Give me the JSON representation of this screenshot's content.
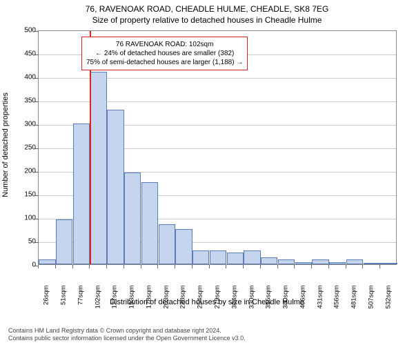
{
  "title1": "76, RAVENOAK ROAD, CHEADLE HULME, CHEADLE, SK8 7EG",
  "title2": "Size of property relative to detached houses in Cheadle Hulme",
  "ylabel": "Number of detached properties",
  "xlabel": "Distribution of detached houses by size in Cheadle Hulme",
  "footer1": "Contains HM Land Registry data © Crown copyright and database right 2024.",
  "footer2": "Contains public sector information licensed under the Open Government Licence v3.0.",
  "annotation": {
    "line1": "76 RAVENOAK ROAD: 102sqm",
    "line2": "← 24% of detached houses are smaller (382)",
    "line3": "75% of semi-detached houses are larger (1,188) →",
    "border_color": "#dd2222"
  },
  "chart": {
    "type": "histogram",
    "ylim": [
      0,
      500
    ],
    "ytick_step": 50,
    "bar_fill": "#c5d5ed",
    "bar_stroke": "#5a7db5",
    "grid_color": "#cccccc",
    "ref_line_x": 102,
    "ref_line_color": "#dd2222",
    "title_fontsize": 12,
    "label_fontsize": 11,
    "tick_fontsize": 10,
    "background_color": "#ffffff",
    "categories": [
      "26sqm",
      "51sqm",
      "77sqm",
      "102sqm",
      "127sqm",
      "153sqm",
      "178sqm",
      "203sqm",
      "228sqm",
      "254sqm",
      "279sqm",
      "304sqm",
      "330sqm",
      "355sqm",
      "380sqm",
      "406sqm",
      "431sqm",
      "456sqm",
      "481sqm",
      "507sqm",
      "532sqm"
    ],
    "values": [
      10,
      95,
      300,
      410,
      330,
      195,
      175,
      85,
      75,
      30,
      30,
      25,
      30,
      15,
      10,
      5,
      10,
      5,
      10,
      3,
      3
    ]
  }
}
